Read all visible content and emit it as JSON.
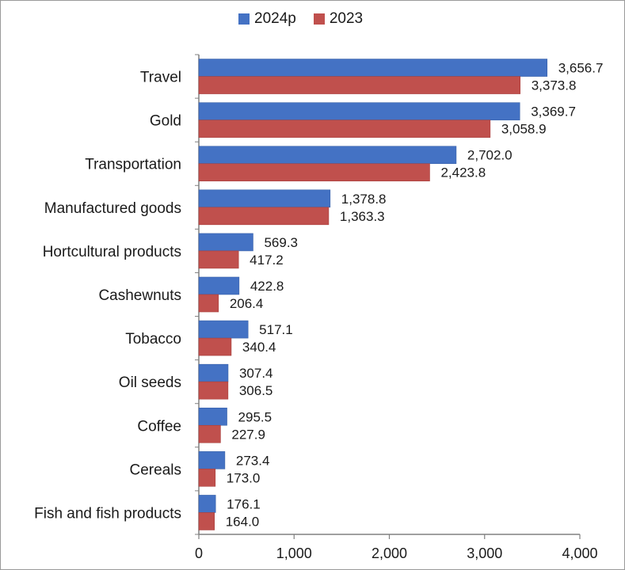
{
  "chart_data": {
    "type": "bar",
    "orientation": "horizontal",
    "title": "",
    "xlabel": "",
    "ylabel": "",
    "xlim": [
      0,
      4000
    ],
    "x_ticks": [
      "0",
      "1,000",
      "2,000",
      "3,000",
      "4,000"
    ],
    "x_tick_values": [
      0,
      1000,
      2000,
      3000,
      4000
    ],
    "grid": false,
    "legend_position": "top-center",
    "categories": [
      "Travel",
      "Gold",
      "Transportation",
      "Manufactured goods",
      "Hortcultural products",
      "Cashewnuts",
      "Tobacco",
      "Oil seeds",
      "Coffee",
      "Cereals",
      "Fish and fish products"
    ],
    "series": [
      {
        "name": "2024p",
        "color": "#4472c4",
        "values": [
          3656.7,
          3369.7,
          2702.0,
          1378.8,
          569.3,
          422.8,
          517.1,
          307.4,
          295.5,
          273.4,
          176.1
        ],
        "labels": [
          "3,656.7",
          "3,369.7",
          "2,702.0",
          "1,378.8",
          "569.3",
          "422.8",
          "517.1",
          "307.4",
          "295.5",
          "273.4",
          "176.1"
        ]
      },
      {
        "name": "2023",
        "color": "#c0504d",
        "values": [
          3373.8,
          3058.9,
          2423.8,
          1363.3,
          417.2,
          206.4,
          340.4,
          306.5,
          227.9,
          173.0,
          164.0
        ],
        "labels": [
          "3,373.8",
          "3,058.9",
          "2,423.8",
          "1,363.3",
          "417.2",
          "206.4",
          "340.4",
          "306.5",
          "227.9",
          "173.0",
          "164.0"
        ]
      }
    ]
  }
}
